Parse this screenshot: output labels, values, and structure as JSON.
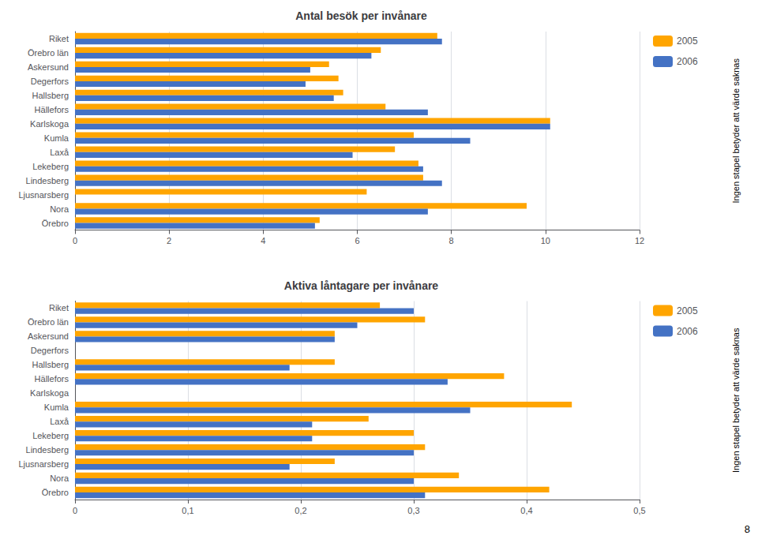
{
  "chart_data": [
    {
      "type": "bar",
      "orientation": "horizontal",
      "title": "Antal besök per invånare",
      "categories": [
        "Riket",
        "Örebro län",
        "Askersund",
        "Degerfors",
        "Hallsberg",
        "Hällefors",
        "Karlskoga",
        "Kumla",
        "Laxå",
        "Lekeberg",
        "Lindesberg",
        "Ljusnarsberg",
        "Nora",
        "Örebro"
      ],
      "series": [
        {
          "name": "2005",
          "color": "#FFA500",
          "values": [
            7.7,
            6.5,
            5.4,
            5.6,
            5.7,
            6.6,
            10.1,
            7.2,
            6.8,
            7.3,
            7.4,
            6.2,
            9.6,
            5.2
          ]
        },
        {
          "name": "2006",
          "color": "#4472C4",
          "values": [
            7.8,
            6.3,
            5.0,
            4.9,
            5.5,
            7.5,
            10.1,
            8.4,
            5.9,
            7.4,
            7.8,
            0.0,
            7.5,
            5.1
          ]
        }
      ],
      "xlim": [
        0,
        12
      ],
      "xticks": [
        0,
        2,
        4,
        6,
        8,
        10,
        12
      ],
      "grid": true,
      "legend": "right",
      "annotations": [
        "Ingen stapel betyder att värde saknas"
      ]
    },
    {
      "type": "bar",
      "orientation": "horizontal",
      "title": "Aktiva låntagare per invånare",
      "categories": [
        "Riket",
        "Örebro län",
        "Askersund",
        "Degerfors",
        "Hallsberg",
        "Hällefors",
        "Karlskoga",
        "Kumla",
        "Laxå",
        "Lekeberg",
        "Lindesberg",
        "Ljusnarsberg",
        "Nora",
        "Örebro"
      ],
      "series": [
        {
          "name": "2005",
          "color": "#FFA500",
          "values": [
            0.27,
            0.31,
            0.23,
            0.0,
            0.23,
            0.38,
            0.0,
            0.44,
            0.26,
            0.3,
            0.31,
            0.23,
            0.34,
            0.42
          ]
        },
        {
          "name": "2006",
          "color": "#4472C4",
          "values": [
            0.3,
            0.25,
            0.23,
            0.0,
            0.19,
            0.33,
            0.0,
            0.35,
            0.21,
            0.21,
            0.3,
            0.19,
            0.3,
            0.31
          ]
        }
      ],
      "xlim": [
        0,
        0.5
      ],
      "xticks": [
        0,
        {
          "value": 0.1,
          "label": "0,1"
        },
        {
          "value": 0.2,
          "label": "0,2"
        },
        {
          "value": 0.3,
          "label": "0,3"
        },
        {
          "value": 0.4,
          "label": "0,4"
        },
        {
          "value": 0.5,
          "label": "0,5"
        }
      ],
      "grid": true,
      "legend": "right",
      "annotations": [
        "Ingen stapel betyder att värde saknas"
      ]
    }
  ],
  "annotations": [
    "8"
  ]
}
